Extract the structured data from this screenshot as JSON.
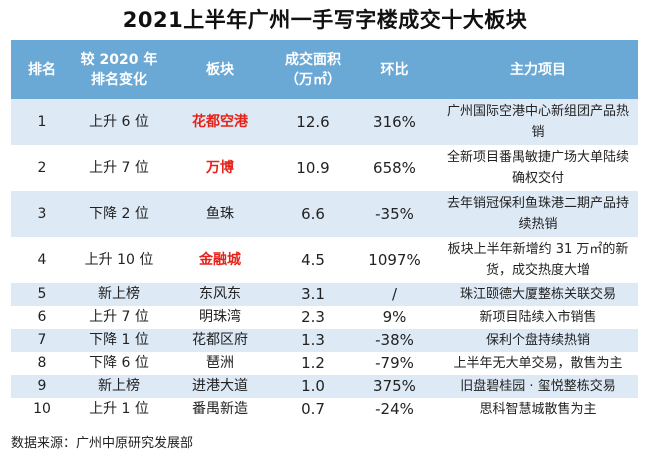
{
  "title": "2021上半年广州一手写字楼成交十大板块",
  "headers": {
    "rank": "排名",
    "change_line1": "较 2020 年",
    "change_line2": "排名变化",
    "block": "板块",
    "area_line1": "成交面积",
    "area_line2": "（万㎡）",
    "ratio": "环比",
    "project": "主力项目"
  },
  "rows": [
    {
      "rank": "1",
      "change": "上升 6 位",
      "block": "花都空港",
      "area": "12.6",
      "ratio": "316%",
      "project": "广州国际空港中心新组团产品热销",
      "highlight": true
    },
    {
      "rank": "2",
      "change": "上升 7 位",
      "block": "万博",
      "area": "10.9",
      "ratio": "658%",
      "project": "全新项目番禺敏捷广场大单陆续确权交付",
      "highlight": true
    },
    {
      "rank": "3",
      "change": "下降 2 位",
      "block": "鱼珠",
      "area": "6.6",
      "ratio": "-35%",
      "project": "去年销冠保利鱼珠港二期产品持续热销",
      "highlight": false
    },
    {
      "rank": "4",
      "change": "上升 10 位",
      "block": "金融城",
      "area": "4.5",
      "ratio": "1097%",
      "project": "板块上半年新增约 31 万㎡的新货，成交热度大增",
      "highlight": true
    },
    {
      "rank": "5",
      "change": "新上榜",
      "block": "东风东",
      "area": "3.1",
      "ratio": "/",
      "project": "珠江颐德大厦整栋关联交易",
      "highlight": false
    },
    {
      "rank": "6",
      "change": "上升 7 位",
      "block": "明珠湾",
      "area": "2.3",
      "ratio": "9%",
      "project": "新项目陆续入市销售",
      "highlight": false
    },
    {
      "rank": "7",
      "change": "下降 1 位",
      "block": "花都区府",
      "area": "1.3",
      "ratio": "-38%",
      "project": "保利个盘持续热销",
      "highlight": false
    },
    {
      "rank": "8",
      "change": "下降 6 位",
      "block": "琶洲",
      "area": "1.2",
      "ratio": "-79%",
      "project": "上半年无大单交易，散售为主",
      "highlight": false
    },
    {
      "rank": "9",
      "change": "新上榜",
      "block": "进港大道",
      "area": "1.0",
      "ratio": "375%",
      "project": "旧盘碧桂园 · 玺悦整栋交易",
      "highlight": false
    },
    {
      "rank": "10",
      "change": "上升 1 位",
      "block": "番禺新造",
      "area": "0.7",
      "ratio": "-24%",
      "project": "思科智慧城散售为主",
      "highlight": false
    }
  ],
  "footer": "数据来源：广州中原研究发展部",
  "colors": {
    "header_bg": "#6aa9d6",
    "stripe": "#dde9f5",
    "highlight": "#e5231a"
  }
}
